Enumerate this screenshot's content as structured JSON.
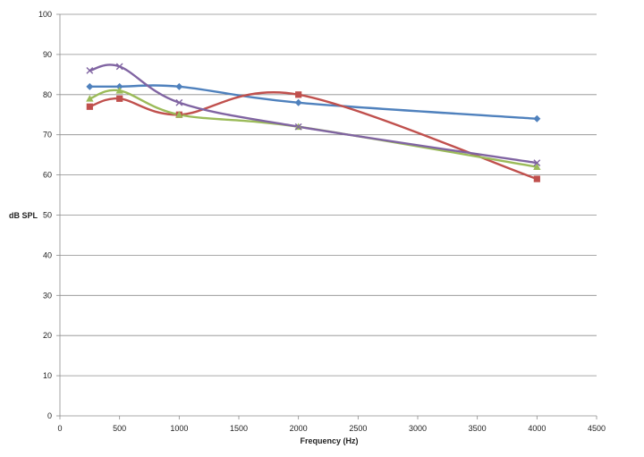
{
  "chart_data": {
    "type": "line",
    "title": "",
    "xlabel": "Frequency (Hz)",
    "ylabel": "dB SPL",
    "xlim": [
      0,
      4500
    ],
    "ylim": [
      0,
      100
    ],
    "x_ticks": [
      0,
      500,
      1000,
      1500,
      2000,
      2500,
      3000,
      3500,
      4000,
      4500
    ],
    "y_ticks": [
      0,
      10,
      20,
      30,
      40,
      50,
      60,
      70,
      80,
      90,
      100
    ],
    "grid": "horizontal",
    "legend": "none",
    "smoothed": true,
    "series": [
      {
        "color": "#4f81bd",
        "marker": "diamond",
        "points": [
          [
            250,
            82
          ],
          [
            500,
            82
          ],
          [
            1000,
            82
          ],
          [
            2000,
            78
          ],
          [
            4000,
            74
          ]
        ]
      },
      {
        "color": "#c0504d",
        "marker": "square",
        "points": [
          [
            250,
            77
          ],
          [
            500,
            79
          ],
          [
            1000,
            75
          ],
          [
            2000,
            80
          ],
          [
            4000,
            59
          ]
        ]
      },
      {
        "color": "#9bbb59",
        "marker": "triangle",
        "points": [
          [
            250,
            79
          ],
          [
            500,
            81
          ],
          [
            1000,
            75
          ],
          [
            2000,
            72
          ],
          [
            4000,
            62
          ]
        ]
      },
      {
        "color": "#8064a2",
        "marker": "x",
        "points": [
          [
            250,
            86
          ],
          [
            500,
            87
          ],
          [
            1000,
            78
          ],
          [
            2000,
            72
          ],
          [
            4000,
            63
          ]
        ]
      }
    ]
  }
}
